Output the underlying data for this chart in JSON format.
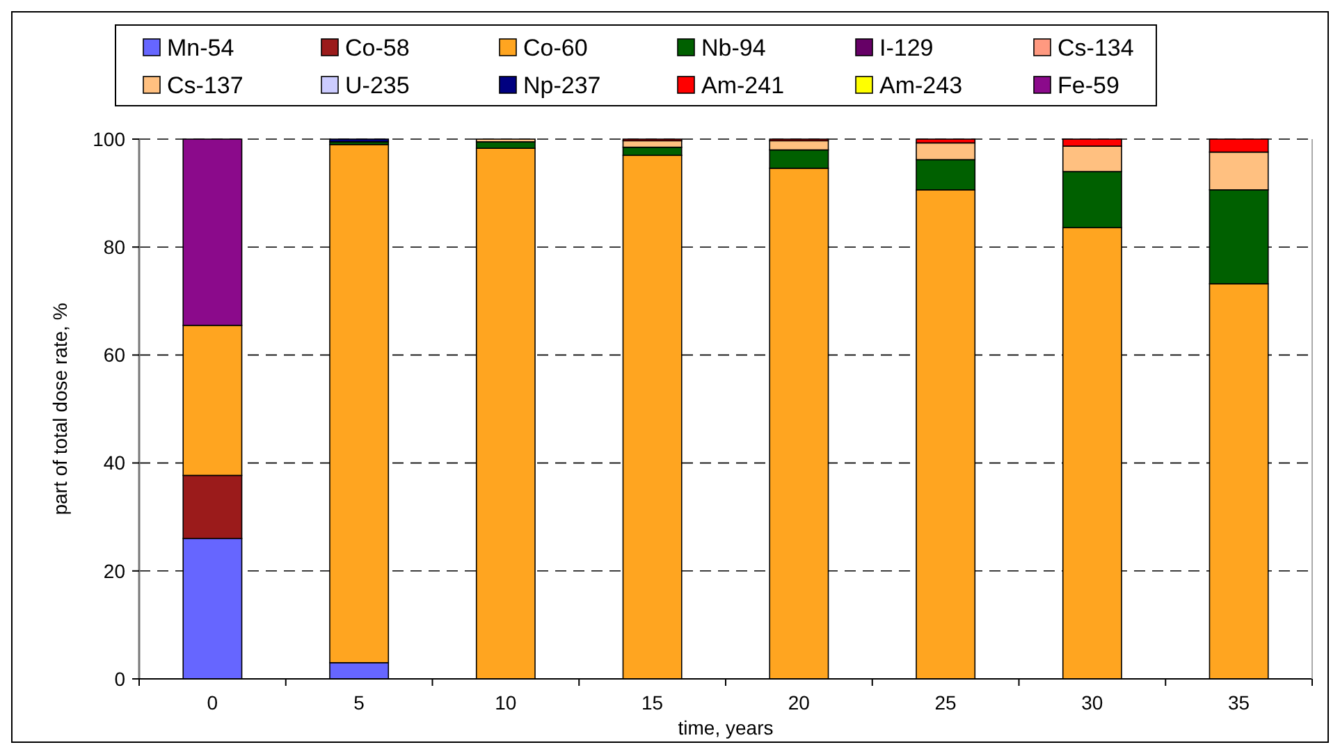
{
  "chart_data": {
    "type": "bar",
    "stacked": true,
    "xlabel": "time, years",
    "ylabel": "part of total dose rate, %",
    "categories": [
      "0",
      "5",
      "10",
      "15",
      "20",
      "25",
      "30",
      "35"
    ],
    "ylim": [
      0,
      100
    ],
    "yticks": [
      0,
      20,
      40,
      60,
      80,
      100
    ],
    "grid": "y",
    "legend": "top",
    "series": [
      {
        "name": "Mn-54",
        "color": "#6666ff",
        "values": [
          26,
          3,
          0,
          0,
          0,
          0,
          0,
          0
        ]
      },
      {
        "name": "Co-58",
        "color": "#9b1b1b",
        "values": [
          11.7,
          0,
          0,
          0,
          0,
          0,
          0,
          0
        ]
      },
      {
        "name": "Co-60",
        "color": "#ffa520",
        "values": [
          27.8,
          96,
          98.3,
          97,
          94.6,
          90.6,
          83.6,
          73.2
        ]
      },
      {
        "name": "Nb-94",
        "color": "#006000",
        "values": [
          0,
          0.5,
          1.2,
          1.5,
          3.4,
          5.6,
          10.4,
          17.4
        ]
      },
      {
        "name": "I-129",
        "color": "#660066",
        "values": [
          0,
          0,
          0,
          0,
          0,
          0,
          0,
          0
        ]
      },
      {
        "name": "Cs-134",
        "color": "#ff9980",
        "values": [
          0,
          0,
          0,
          0,
          0,
          0,
          0,
          0
        ]
      },
      {
        "name": "Cs-137",
        "color": "#ffc080",
        "values": [
          0,
          0,
          0.5,
          1.2,
          1.7,
          3.1,
          4.7,
          7
        ]
      },
      {
        "name": "U-235",
        "color": "#ccccff",
        "values": [
          0,
          0,
          0,
          0,
          0,
          0,
          0,
          0
        ]
      },
      {
        "name": "Np-237",
        "color": "#000080",
        "values": [
          0,
          0.5,
          0,
          0,
          0,
          0,
          0,
          0
        ]
      },
      {
        "name": "Am-241",
        "color": "#ff0000",
        "values": [
          0,
          0,
          0,
          0.3,
          0.3,
          0.7,
          1.3,
          2.4
        ]
      },
      {
        "name": "Am-243",
        "color": "#ffff00",
        "values": [
          0,
          0,
          0,
          0,
          0,
          0,
          0,
          0
        ]
      },
      {
        "name": "Fe-59",
        "color": "#8b0a8b",
        "values": [
          34.5,
          0,
          0,
          0,
          0,
          0,
          0,
          0
        ]
      }
    ]
  }
}
